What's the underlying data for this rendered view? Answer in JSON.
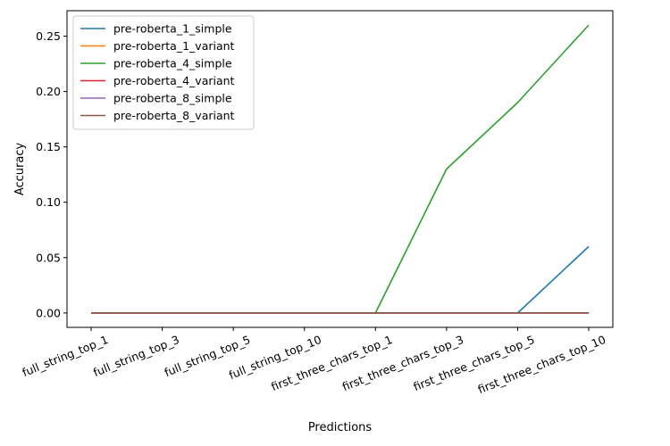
{
  "chart_data": {
    "type": "line",
    "title": "",
    "xlabel": "Predictions",
    "ylabel": "Accuracy",
    "categories": [
      "full_string_top_1",
      "full_string_top_3",
      "full_string_top_5",
      "full_string_top_10",
      "first_three_chars_top_1",
      "first_three_chars_top_3",
      "first_three_chars_top_5",
      "first_three_chars_top_10"
    ],
    "ylim": [
      -0.013,
      0.273
    ],
    "yticks": [
      0.0,
      0.05,
      0.1,
      0.15,
      0.2,
      0.25
    ],
    "ytick_labels": [
      "0.00",
      "0.05",
      "0.10",
      "0.15",
      "0.20",
      "0.25"
    ],
    "grid": false,
    "legend_position": "top-left",
    "series": [
      {
        "name": "pre-roberta_1_simple",
        "color": "#1f77b4",
        "values": [
          0,
          0,
          0,
          0,
          0,
          0,
          0,
          0.06
        ]
      },
      {
        "name": "pre-roberta_1_variant",
        "color": "#ff7f0e",
        "values": [
          0,
          0,
          0,
          0,
          0,
          0,
          0,
          0
        ]
      },
      {
        "name": "pre-roberta_4_simple",
        "color": "#2ca02c",
        "values": [
          0,
          0,
          0,
          0,
          0,
          0.13,
          0.19,
          0.26
        ]
      },
      {
        "name": "pre-roberta_4_variant",
        "color": "#d62728",
        "values": [
          0,
          0,
          0,
          0,
          0,
          0,
          0,
          0
        ]
      },
      {
        "name": "pre-roberta_8_simple",
        "color": "#9467bd",
        "values": [
          0,
          0,
          0,
          0,
          0,
          0,
          0,
          0
        ]
      },
      {
        "name": "pre-roberta_8_variant",
        "color": "#8c564b",
        "values": [
          0,
          0,
          0,
          0,
          0,
          0,
          0,
          0
        ]
      }
    ]
  }
}
